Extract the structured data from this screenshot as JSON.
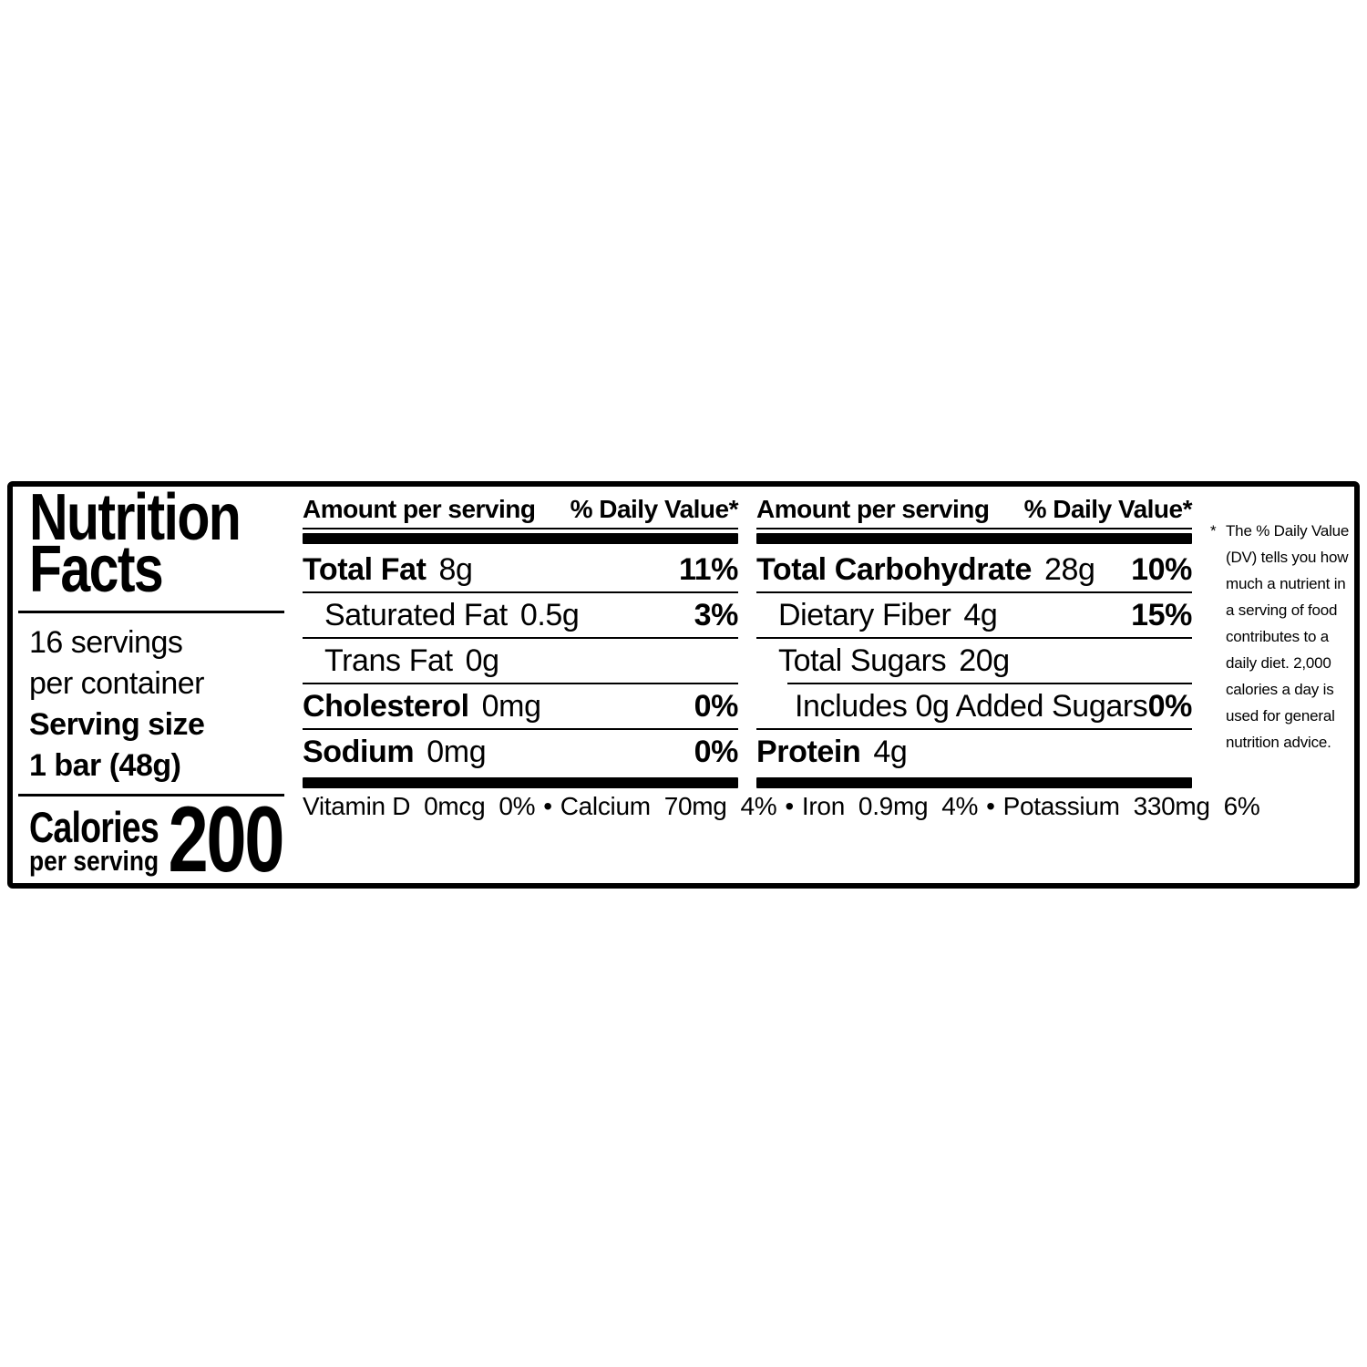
{
  "label": {
    "title_line1": "Nutrition",
    "title_line2": "Facts",
    "servings_line1": "16 servings",
    "servings_line2": "per container",
    "serving_size_label": "Serving size",
    "serving_size_value": "1 bar (48g)",
    "calories_label": "Calories",
    "calories_sub": "per serving",
    "calories_value": "200"
  },
  "columns": {
    "header_amount": "Amount per serving",
    "header_dv": "% Daily Value*"
  },
  "col1": {
    "rows": [
      {
        "label": "Total Fat",
        "amount": "8g",
        "dv": "11%"
      },
      {
        "label": "Saturated Fat",
        "amount": "0.5g",
        "dv": "3%"
      },
      {
        "label": "Trans Fat",
        "amount": "0g",
        "dv": ""
      },
      {
        "label": "Cholesterol",
        "amount": "0mg",
        "dv": "0%"
      },
      {
        "label": "Sodium",
        "amount": "0mg",
        "dv": "0%"
      }
    ]
  },
  "col2": {
    "rows": [
      {
        "label": "Total Carbohydrate",
        "amount": "28g",
        "dv": "10%"
      },
      {
        "label": "Dietary Fiber",
        "amount": "4g",
        "dv": "15%"
      },
      {
        "label": "Total Sugars",
        "amount": "20g",
        "dv": ""
      },
      {
        "label": "Includes 0g Added Sugars",
        "amount": "",
        "dv": "0%"
      },
      {
        "label": "Protein",
        "amount": "4g",
        "dv": ""
      }
    ]
  },
  "micronutrients": {
    "separator": "•",
    "items": [
      "Vitamin D  0mcg  0%",
      "Calcium  70mg  4%",
      "Iron  0.9mg  4%",
      "Potassium  330mg  6%"
    ]
  },
  "footnote": {
    "marker": "*",
    "text": "The % Daily Value (DV) tells you how much a nutrient in a serving of food contributes to a daily diet. 2,000 calories a day is used for general nutrition advice."
  }
}
